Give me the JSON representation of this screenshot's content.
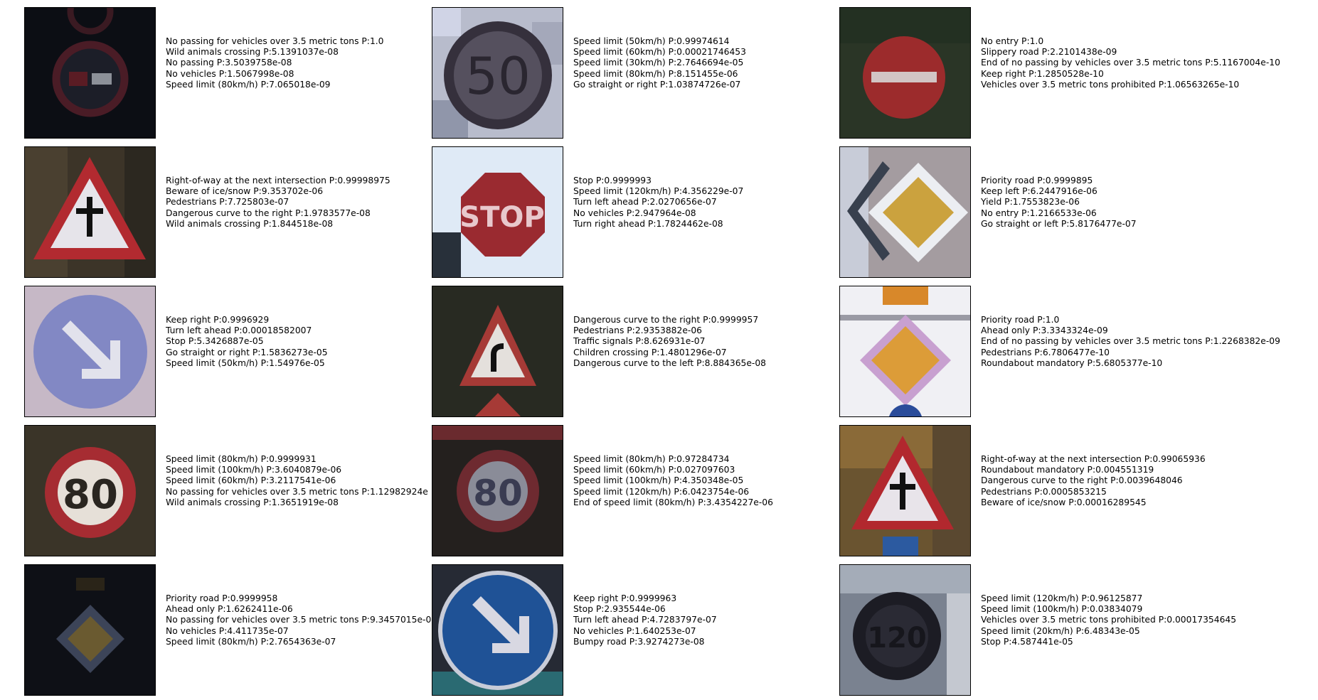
{
  "panels": [
    {
      "sign": "no-passing-trucks-sign",
      "predictions": [
        "No passing for vehicles over 3.5 metric tons P:1.0",
        "Wild animals crossing P:5.1391037e-08",
        "No passing P:3.5039758e-08",
        "No vehicles P:1.5067998e-08",
        "Speed limit (80km/h) P:7.065018e-09"
      ]
    },
    {
      "sign": "speed-limit-50-sign",
      "predictions": [
        "Speed limit (50km/h) P:0.99974614",
        "Speed limit (60km/h) P:0.00021746453",
        "Speed limit (30km/h) P:2.7646694e-05",
        "Speed limit (80km/h) P:8.151455e-06",
        "Go straight or right P:1.03874726e-07"
      ]
    },
    {
      "sign": "no-entry-sign",
      "predictions": [
        "No entry P:1.0",
        "Slippery road P:2.2101438e-09",
        "End of no passing by vehicles over 3.5 metric tons P:5.1167004e-10",
        "Keep right P:1.2850528e-10",
        "Vehicles over 3.5 metric tons prohibited P:1.06563265e-10"
      ]
    },
    {
      "sign": "right-of-way-sign",
      "predictions": [
        "Right-of-way at the next intersection P:0.99998975",
        "Beware of ice/snow P:9.353702e-06",
        "Pedestrians P:7.725803e-07",
        "Dangerous curve to the right P:1.9783577e-08",
        "Wild animals crossing P:1.844518e-08"
      ]
    },
    {
      "sign": "stop-sign",
      "predictions": [
        "Stop P:0.9999993",
        "Speed limit (120km/h) P:4.356229e-07",
        "Turn left ahead P:2.0270656e-07",
        "No vehicles P:2.947964e-08",
        "Turn right ahead P:1.7824462e-08"
      ]
    },
    {
      "sign": "priority-road-sign",
      "predictions": [
        "Priority road P:0.9999895",
        "Keep left P:6.2447916e-06",
        "Yield P:1.7553823e-06",
        "No entry P:1.2166533e-06",
        "Go straight or left P:5.8176477e-07"
      ]
    },
    {
      "sign": "keep-right-sign",
      "predictions": [
        "Keep right P:0.9996929",
        "Turn left ahead P:0.00018582007",
        "Stop P:5.3426887e-05",
        "Go straight or right P:1.5836273e-05",
        "Speed limit (50km/h) P:1.54976e-05"
      ]
    },
    {
      "sign": "dangerous-curve-right-sign",
      "predictions": [
        "Dangerous curve to the right P:0.9999957",
        "Pedestrians P:2.9353882e-06",
        "Traffic signals P:8.626931e-07",
        "Children crossing P:1.4801296e-07",
        "Dangerous curve to the left P:8.884365e-08"
      ]
    },
    {
      "sign": "priority-road-sign",
      "predictions": [
        "Priority road P:1.0",
        "Ahead only P:3.3343324e-09",
        "End of no passing by vehicles over 3.5 metric tons P:1.2268382e-09",
        "Pedestrians P:6.7806477e-10",
        "Roundabout mandatory P:5.6805377e-10"
      ]
    },
    {
      "sign": "speed-limit-80-sign",
      "predictions": [
        "Speed limit (80km/h) P:0.9999931",
        "Speed limit (100km/h) P:3.6040879e-06",
        "Speed limit (60km/h) P:3.2117541e-06",
        "No passing for vehicles over 3.5 metric tons P:1.12982924e",
        "Wild animals crossing P:1.3651919e-08"
      ]
    },
    {
      "sign": "speed-limit-80-sign",
      "predictions": [
        "Speed limit (80km/h) P:0.97284734",
        "Speed limit (60km/h) P:0.027097603",
        "Speed limit (100km/h) P:4.350348e-05",
        "Speed limit (120km/h) P:6.0423754e-06",
        "End of speed limit (80km/h) P:3.4354227e-06"
      ]
    },
    {
      "sign": "right-of-way-sign",
      "predictions": [
        "Right-of-way at the next intersection P:0.99065936",
        "Roundabout mandatory P:0.004551319",
        "Dangerous curve to the right P:0.0039648046",
        "Pedestrians P:0.0005853215",
        "Beware of ice/snow P:0.00016289545"
      ]
    },
    {
      "sign": "priority-road-sign",
      "predictions": [
        "Priority road P:0.9999958",
        "Ahead only P:1.6262411e-06",
        "No passing for vehicles over 3.5 metric tons P:9.3457015e-0",
        "No vehicles P:4.411735e-07",
        "Speed limit (80km/h) P:2.7654363e-07"
      ]
    },
    {
      "sign": "keep-right-sign",
      "predictions": [
        "Keep right P:0.9999963",
        "Stop P:2.935544e-06",
        "Turn left ahead P:4.7283797e-07",
        "No vehicles P:1.640253e-07",
        "Bumpy road P:3.9274273e-08"
      ]
    },
    {
      "sign": "speed-limit-120-sign",
      "predictions": [
        "Speed limit (120km/h) P:0.96125877",
        "Speed limit (100km/h) P:0.03834079",
        "Vehicles over 3.5 metric tons prohibited P:0.00017354645",
        "Speed limit (20km/h) P:6.48343e-05",
        "Stop P:4.587441e-05"
      ]
    }
  ],
  "colors": {
    "sign_red": "#b0262e",
    "sign_blue": "#7d88c8",
    "priority_yellow": "#d9a43a",
    "dark_bg": "#101218"
  }
}
